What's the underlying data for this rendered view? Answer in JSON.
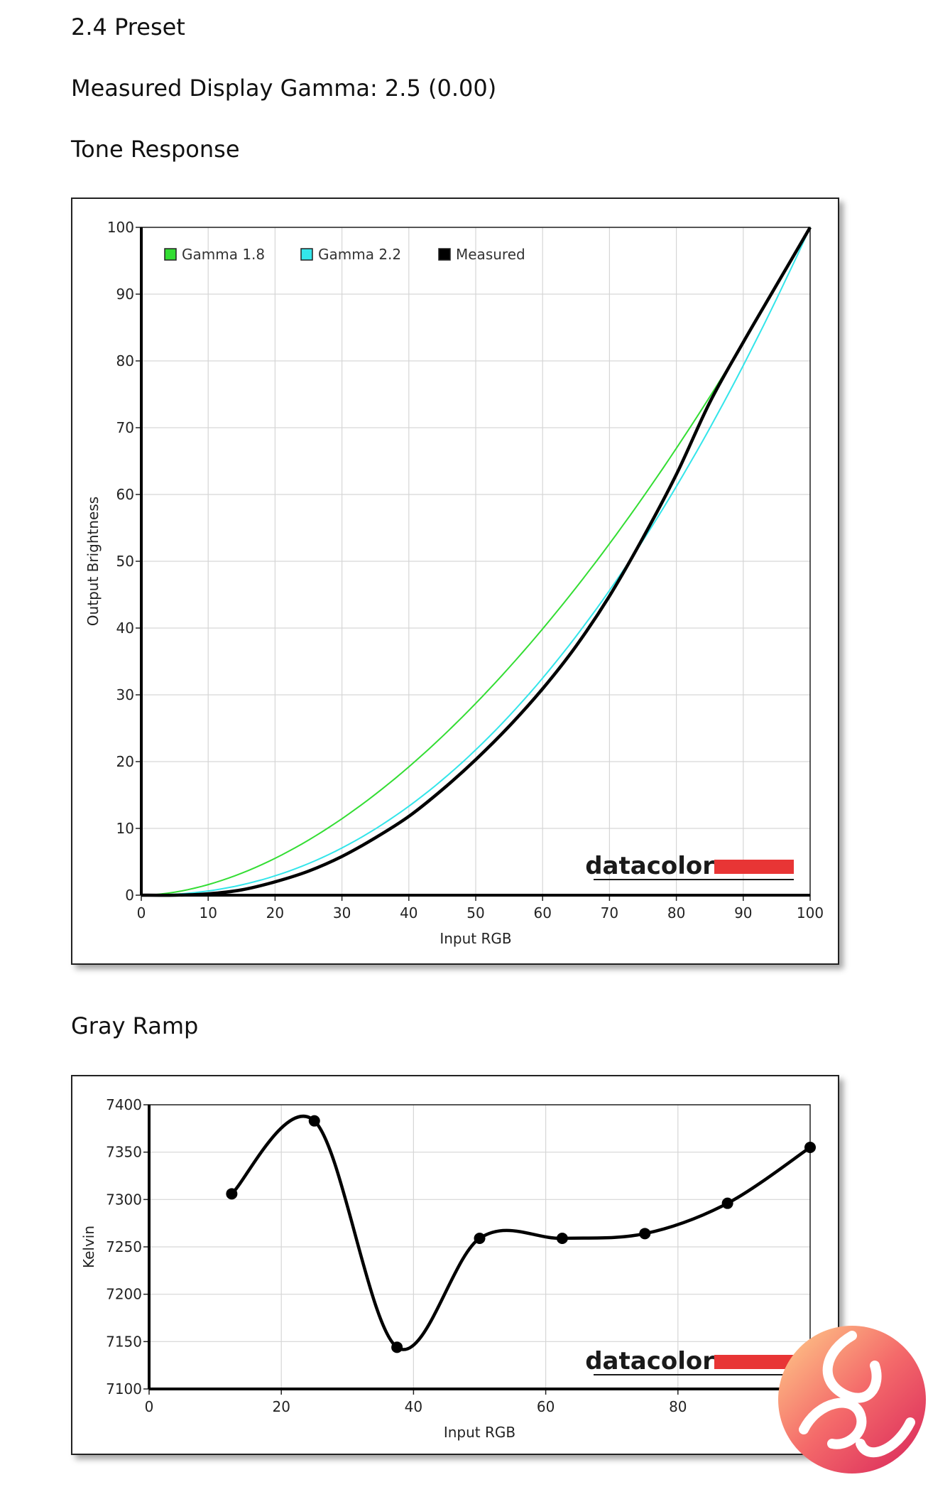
{
  "page": {
    "preset_title": "2.4 Preset",
    "measured_gamma": "Measured Display Gamma: 2.5 (0.00)",
    "tone_heading": "Tone Response",
    "gray_heading": "Gray Ramp"
  },
  "brand": {
    "name": "datacolor",
    "color": "#e83535"
  },
  "colors": {
    "gamma18": "#33dd33",
    "gamma22": "#33e5ea",
    "measured": "#000000",
    "grid": "#d6d6d6"
  },
  "chart_data": [
    {
      "type": "line",
      "xlabel": "Input RGB",
      "ylabel": "Output Brightness",
      "xlim": [
        0,
        100
      ],
      "ylim": [
        0,
        100
      ],
      "xticks": [
        0,
        10,
        20,
        30,
        40,
        50,
        60,
        70,
        80,
        90,
        100
      ],
      "yticks": [
        0,
        10,
        20,
        30,
        40,
        50,
        60,
        70,
        80,
        90,
        100
      ],
      "grid": true,
      "legend_position": "top-left",
      "series": [
        {
          "name": "Gamma 1.8",
          "color": "#33dd33",
          "gamma": 1.8,
          "x": [
            0,
            5,
            10,
            15,
            20,
            25,
            30,
            35,
            40,
            45,
            50,
            55,
            60,
            65,
            70,
            75,
            80,
            85,
            90,
            95,
            100
          ],
          "y": [
            0,
            0.5,
            1.6,
            3.3,
            5.5,
            8.2,
            11.5,
            15.1,
            19.2,
            23.8,
            28.7,
            34.1,
            39.9,
            46.0,
            52.6,
            59.6,
            66.9,
            74.6,
            82.7,
            91.2,
            100
          ]
        },
        {
          "name": "Gamma 2.2",
          "color": "#33e5ea",
          "gamma": 2.2,
          "x": [
            0,
            5,
            10,
            15,
            20,
            25,
            30,
            35,
            40,
            45,
            50,
            55,
            60,
            65,
            70,
            75,
            80,
            85,
            90,
            95,
            100
          ],
          "y": [
            0,
            0.1,
            0.6,
            1.5,
            2.9,
            4.8,
            7.1,
            9.9,
            13.3,
            17.3,
            21.8,
            26.9,
            32.5,
            38.7,
            45.6,
            53.1,
            61.2,
            69.9,
            79.3,
            89.3,
            100
          ]
        },
        {
          "name": "Measured",
          "color": "#000000",
          "x": [
            0,
            5,
            10,
            15,
            20,
            25,
            30,
            35,
            40,
            45,
            50,
            55,
            60,
            65,
            70,
            75,
            80,
            85,
            90,
            95,
            100
          ],
          "y": [
            0,
            0,
            0.2,
            0.8,
            2.0,
            3.6,
            5.8,
            8.6,
            11.8,
            15.8,
            20.3,
            25.3,
            30.9,
            37.3,
            44.8,
            53.5,
            63.0,
            73.8,
            82.8,
            91.4,
            100
          ]
        }
      ]
    },
    {
      "type": "line",
      "xlabel": "Input RGB",
      "ylabel": "Kelvin",
      "xlim": [
        0,
        100
      ],
      "ylim": [
        7100,
        7400
      ],
      "xticks": [
        0,
        20,
        40,
        60,
        80,
        100
      ],
      "yticks": [
        7100,
        7150,
        7200,
        7250,
        7300,
        7350,
        7400
      ],
      "grid": true,
      "series": [
        {
          "color": "#000000",
          "x": [
            12.5,
            25,
            37.5,
            50,
            62.5,
            75,
            87.5,
            100
          ],
          "y": [
            7306,
            7383,
            7144,
            7259,
            7259,
            7264,
            7296,
            7355
          ]
        }
      ]
    }
  ]
}
